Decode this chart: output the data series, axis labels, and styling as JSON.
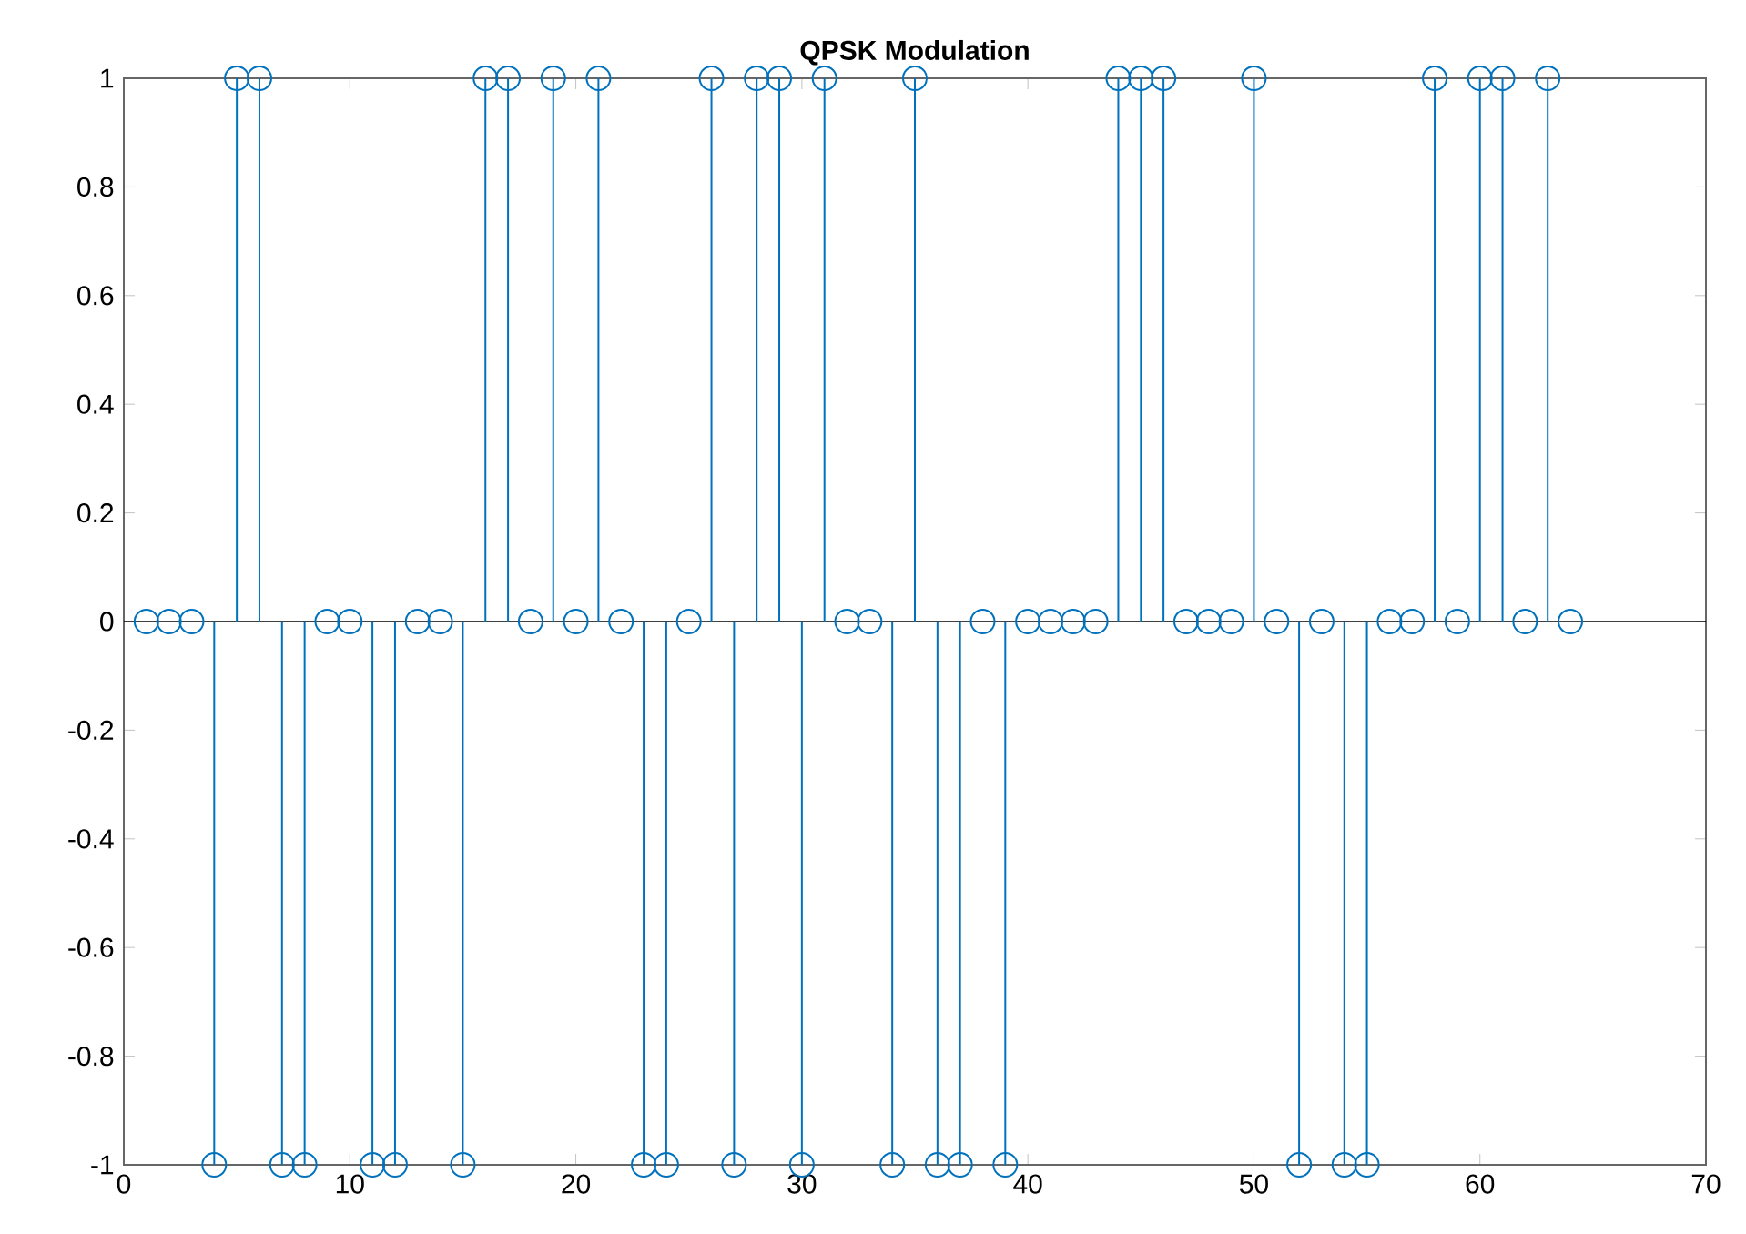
{
  "chart_data": {
    "type": "lollipop",
    "title": "QPSK Modulation",
    "x": [
      1,
      2,
      3,
      4,
      5,
      6,
      7,
      8,
      9,
      10,
      11,
      12,
      13,
      14,
      15,
      16,
      17,
      18,
      19,
      20,
      21,
      22,
      23,
      24,
      25,
      26,
      27,
      28,
      29,
      30,
      31,
      32,
      33,
      34,
      35,
      36,
      37,
      38,
      39,
      40,
      41,
      42,
      43,
      44,
      45,
      46,
      47,
      48,
      49,
      50,
      51,
      52,
      53,
      54,
      55,
      56,
      57,
      58,
      59,
      60,
      61,
      62,
      63,
      64
    ],
    "values": [
      0,
      0,
      0,
      -1,
      1,
      1,
      -1,
      -1,
      0,
      0,
      -1,
      -1,
      0,
      0,
      -1,
      1,
      1,
      0,
      1,
      0,
      1,
      0,
      -1,
      -1,
      0,
      1,
      -1,
      1,
      1,
      -1,
      1,
      0,
      0,
      -1,
      1,
      -1,
      -1,
      0,
      -1,
      0,
      0,
      0,
      0,
      1,
      1,
      1,
      0,
      0,
      0,
      1,
      0,
      -1,
      0,
      -1,
      -1,
      0,
      0,
      1,
      0,
      1,
      1,
      0,
      1,
      0
    ],
    "color": "#0072bd",
    "marker": "circle",
    "xlim": [
      0,
      70
    ],
    "xticks": [
      0,
      10,
      20,
      30,
      40,
      50,
      60,
      70
    ],
    "ylim": [
      -1,
      1
    ],
    "yticks": [
      -1,
      -0.8,
      -0.6,
      -0.4,
      -0.2,
      0,
      0.2,
      0.4,
      0.6,
      0.8,
      1
    ],
    "ref_lines": [
      {
        "axis": "y",
        "value": 0,
        "color": "#000000"
      }
    ]
  }
}
